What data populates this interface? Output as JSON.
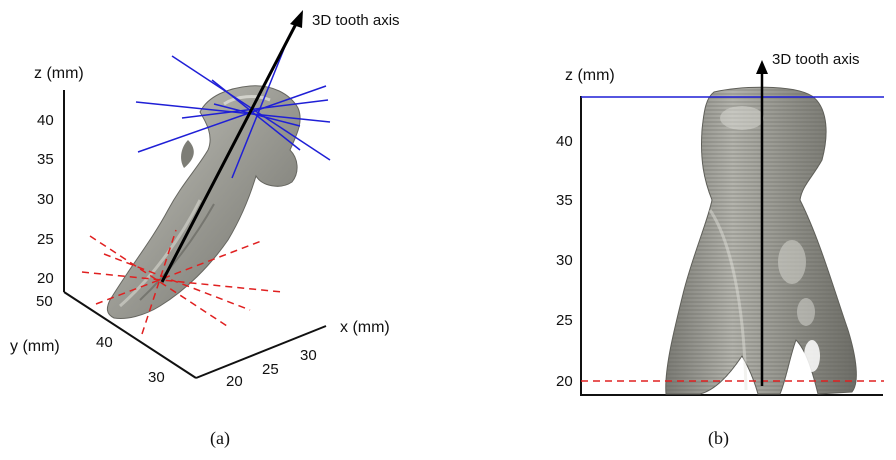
{
  "panel_a": {
    "caption": "(a)",
    "axis_label": "3D tooth axis",
    "z_label": "z (mm)",
    "y_label": "y (mm)",
    "x_label": "x (mm)",
    "z_ticks": [
      "40",
      "35",
      "30",
      "25",
      "20"
    ],
    "y_ticks": [
      "50",
      "40",
      "30"
    ],
    "x_ticks": [
      "20",
      "25",
      "30"
    ]
  },
  "panel_b": {
    "caption": "(b)",
    "axis_label": "3D tooth axis",
    "z_label": "z (mm)",
    "z_ticks": [
      "40",
      "35",
      "30",
      "25",
      "20"
    ]
  },
  "colors": {
    "plane_top": "#1f1fd6",
    "plane_bottom": "#e02020",
    "axis": "#000000",
    "tooth": "#8f8f88"
  }
}
